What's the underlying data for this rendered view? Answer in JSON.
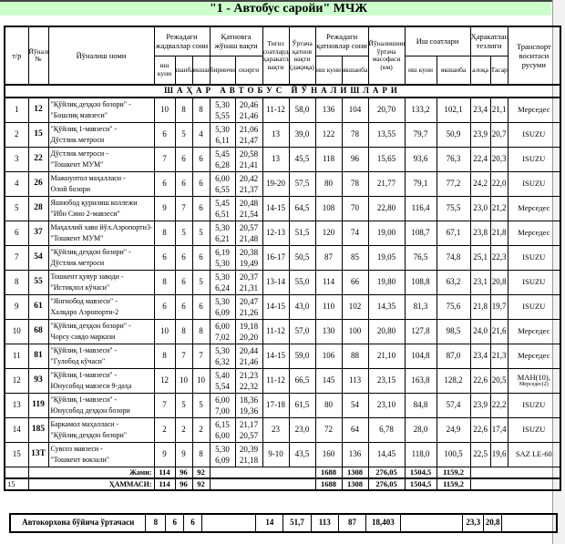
{
  "title": "\"1 - Автобус саройи\" МЧЖ",
  "headers": {
    "tr": "т/р",
    "route_no": "Йўналиш №",
    "route_name": "Йўналиш номи",
    "schedules": "Режадаги жадваллар сони",
    "workday": "иш куни",
    "saturday": "шанба",
    "sunday": "якшанба",
    "departure": "Қатновга жўнаш вақти",
    "first": "биринчи",
    "last": "охирги",
    "peak": "Тигиз соатларда ҳаракатланиш вақти",
    "avg_trip": "Ўртача қатнов вақти (дақиқа)",
    "trips": "Режадаги қатновлар сони",
    "trips_work": "иш куни",
    "trips_sun": "якшанба",
    "distance": "Йўналишнинг ўртача масофаси (км)",
    "hours": "Иш соатлари",
    "hours_work": "иш куни",
    "hours_sun": "якшанба",
    "speed": "Ҳаракатланиш тезлиги",
    "speed_comm": "алоқа",
    "speed_tech": "Тасарруф",
    "transport": "Транспорт воситаси русуми"
  },
  "section_title": "ШАҲАР АВТОБУС ЙЎНАЛИШЛАРИ",
  "rows": [
    {
      "n": "1",
      "route": "12",
      "name1": "\"Қўйлиқ деҳқон бозори\" -",
      "name2": "\"Бошлиқ мавзеси\"",
      "s1": "10",
      "s2": "8",
      "s3": "8",
      "f1": "5,30",
      "f2": "5,55",
      "l1": "20,46",
      "l2": "21,46",
      "peak": "11-12",
      "avg": "58,0",
      "tw": "136",
      "ts": "104",
      "dist": "20,70",
      "hw": "133,2",
      "hs": "102,1",
      "sp1": "23,4",
      "sp2": "21,1",
      "tr": "Мерседес"
    },
    {
      "n": "2",
      "route": "15",
      "name1": "\"Қўйлиқ 1-мавзеси\" -",
      "name2": "Дўстлик метроси",
      "s1": "6",
      "s2": "5",
      "s3": "4",
      "f1": "5,30",
      "f2": "6,11",
      "l1": "21,06",
      "l2": "21,47",
      "peak": "13",
      "avg": "39,0",
      "tw": "122",
      "ts": "78",
      "dist": "13,55",
      "hw": "79,7",
      "hs": "50,9",
      "sp1": "23,9",
      "sp2": "20,7",
      "tr": "ISUZU"
    },
    {
      "n": "3",
      "route": "22",
      "name1": "Дўстлик метроси  -",
      "name2": "\"Тошкент МУМ\"",
      "s1": "7",
      "s2": "6",
      "s3": "6",
      "f1": "5,45",
      "f2": "6,28",
      "l1": "20,58",
      "l2": "21,41",
      "peak": "13",
      "avg": "45,5",
      "tw": "118",
      "ts": "96",
      "dist": "15,65",
      "hw": "93,6",
      "hs": "76,3",
      "sp1": "22,4",
      "sp2": "20,3",
      "tr": "ISUZU"
    },
    {
      "n": "4",
      "route": "26",
      "name1": "Мажнунтол маҳалласи -",
      "name2": "Олой бозори",
      "s1": "6",
      "s2": "6",
      "s3": "6",
      "f1": "6,00",
      "f2": "6,55",
      "l1": "20,42",
      "l2": "21,37",
      "peak": "19-20",
      "avg": "57,5",
      "tw": "80",
      "ts": "78",
      "dist": "21,77",
      "hw": "79,1",
      "hs": "77,2",
      "sp1": "24,2",
      "sp2": "22,0",
      "tr": "ISUZU"
    },
    {
      "n": "5",
      "route": "28",
      "name1": "Яшнобод қурилиш коллежи",
      "name2": "\"Ибн Сино 2-мавзеси\"",
      "s1": "9",
      "s2": "7",
      "s3": "6",
      "f1": "5,45",
      "f2": "6,51",
      "l1": "20,48",
      "l2": "21,54",
      "peak": "14-15",
      "avg": "64,5",
      "tw": "108",
      "ts": "70",
      "dist": "22,80",
      "hw": "116,4",
      "hs": "75,5",
      "sp1": "23,0",
      "sp2": "21,2",
      "tr": "Мерседес"
    },
    {
      "n": "6",
      "route": "37",
      "name1": "Маҳаллий хаво йўл.Аэропорти3-",
      "name2": "\"Тошкент МУМ\"",
      "s1": "8",
      "s2": "5",
      "s3": "5",
      "f1": "5,30",
      "f2": "6,21",
      "l1": "20,57",
      "l2": "21,48",
      "peak": "12-13",
      "avg": "51,5",
      "tw": "120",
      "ts": "74",
      "dist": "19,00",
      "hw": "108,7",
      "hs": "67,1",
      "sp1": "23,8",
      "sp2": "21,8",
      "tr": "Мерседес"
    },
    {
      "n": "7",
      "route": "54",
      "name1": "\"Қўйлиқ деҳқон бозори\" -",
      "name2": "Дўстлик метроси",
      "s1": "6",
      "s2": "6",
      "s3": "6",
      "f1": "6,19",
      "f2": "5,30",
      "l1": "20,38",
      "l2": "19,49",
      "peak": "16-17",
      "avg": "50,5",
      "tw": "87",
      "ts": "85",
      "dist": "19,05",
      "hw": "76,5",
      "hs": "74,8",
      "sp1": "25,1",
      "sp2": "22,3",
      "tr": "ISUZU"
    },
    {
      "n": "8",
      "route": "55",
      "name1": "Тошкент қувур заводи -",
      "name2": "\"Истиқлол кўчаси\"",
      "s1": "8",
      "s2": "6",
      "s3": "5",
      "f1": "5,30",
      "f2": "6,24",
      "l1": "20,37",
      "l2": "21,31",
      "peak": "13-14",
      "avg": "55,0",
      "tw": "114",
      "ts": "66",
      "dist": "19,80",
      "hw": "108,8",
      "hs": "63,2",
      "sp1": "23,1",
      "sp2": "20,8",
      "tr": "ISUZU"
    },
    {
      "n": "9",
      "route": "61",
      "name1": "\"Янгиобод мавзеси\"  -",
      "name2": "Халқаро Аэропорти-2",
      "s1": "6",
      "s2": "6",
      "s3": "6",
      "f1": "5,30",
      "f2": "6,09",
      "l1": "20,47",
      "l2": "21,26",
      "peak": "14-15",
      "avg": "43,0",
      "tw": "110",
      "ts": "102",
      "dist": "14,35",
      "hw": "81,3",
      "hs": "75,6",
      "sp1": "21,8",
      "sp2": "19,7",
      "tr": "ISUZU"
    },
    {
      "n": "10",
      "route": "68",
      "name1": "\"Қўйлиқ деҳқон бозори\" -",
      "name2": "Чорсу савдо маркази",
      "s1": "10",
      "s2": "8",
      "s3": "8",
      "f1": "6,00",
      "f2": "7,02",
      "l1": "19,18",
      "l2": "20,20",
      "peak": "11-12",
      "avg": "57,0",
      "tw": "130",
      "ts": "100",
      "dist": "20,80",
      "hw": "127,8",
      "hs": "98,5",
      "sp1": "24,0",
      "sp2": "21,6",
      "tr": "Мерседес"
    },
    {
      "n": "11",
      "route": "81",
      "name1": "\"Қўйлиқ 1-мавзеси\"  -",
      "name2": "\"Гулобод кўчаси\"",
      "s1": "8",
      "s2": "7",
      "s3": "7",
      "f1": "5,30",
      "f2": "6,32",
      "l1": "20,44",
      "l2": "21,46",
      "peak": "14-15",
      "avg": "59,0",
      "tw": "106",
      "ts": "88",
      "dist": "21,10",
      "hw": "104,8",
      "hs": "87,0",
      "sp1": "23,4",
      "sp2": "21,3",
      "tr": "Мерседес"
    },
    {
      "n": "12",
      "route": "93",
      "name1": "\"Қўйлиқ 1-мавзеси\"  -",
      "name2": "Юнусобод мавзеси 9-даҳа",
      "s1": "12",
      "s2": "10",
      "s3": "10",
      "f1": "5,40",
      "f2": "5,54",
      "l1": "21,23",
      "l2": "22,32",
      "peak": "11-12",
      "avg": "66,5",
      "tw": "145",
      "ts": "113",
      "dist": "23,15",
      "hw": "163,8",
      "hs": "128,2",
      "sp1": "22,6",
      "sp2": "20,5",
      "tr": "МАН(10),",
      "tr2": "Мерседес(2)"
    },
    {
      "n": "13",
      "route": "119",
      "name1": "\"Қўйлиқ 1-мавзеси\"  -",
      "name2": "Юнусобод деҳқон бозори",
      "s1": "7",
      "s2": "5",
      "s3": "5",
      "f1": "6,00",
      "f2": "7,00",
      "l1": "18,36",
      "l2": "19,36",
      "peak": "17-18",
      "avg": "61,5",
      "tw": "80",
      "ts": "54",
      "dist": "23,10",
      "hw": "84,8",
      "hs": "57,4",
      "sp1": "23,9",
      "sp2": "22,2",
      "tr": "ISUZU"
    },
    {
      "n": "14",
      "route": "185",
      "name1": "Баркамол маҳалласи -",
      "name2": "\"Қўйлиқ деҳқон бозори\"",
      "s1": "2",
      "s2": "2",
      "s3": "2",
      "f1": "6,15",
      "f2": "6,00",
      "l1": "21,17",
      "l2": "20,57",
      "peak": "23",
      "avg": "23,0",
      "tw": "72",
      "ts": "64",
      "dist": "6,78",
      "hw": "28,0",
      "hs": "24,9",
      "sp1": "22,6",
      "sp2": "17,4",
      "tr": "ISUZU"
    },
    {
      "n": "15",
      "route": "13Т",
      "name1": "Сувсоз мавзеси -",
      "name2": "\"Тошкент вокзали\"",
      "s1": "9",
      "s2": "9",
      "s3": "8",
      "f1": "5,30",
      "f2": "6,09",
      "l1": "20,39",
      "l2": "21,18",
      "peak": "9-10",
      "avg": "43,5",
      "tw": "160",
      "ts": "136",
      "dist": "14,45",
      "hw": "118,0",
      "hs": "100,5",
      "sp1": "22,5",
      "sp2": "19,6",
      "tr": "SAZ LE-60"
    }
  ],
  "total": {
    "label": "Жами:",
    "s1": "114",
    "s2": "96",
    "s3": "92",
    "tw": "1688",
    "ts": "1308",
    "dist": "276,05",
    "hw": "1504,5",
    "hs": "1159,2"
  },
  "grand_total": {
    "count": "15",
    "label": "ҲАММАСИ:",
    "s1": "114",
    "s2": "96",
    "s3": "92",
    "tw": "1688",
    "ts": "1308",
    "dist": "276,05",
    "hw": "1504,5",
    "hs": "1159,2"
  },
  "average": {
    "label": "Автокорхона бўйича ўртачаси",
    "s1": "8",
    "s2": "6",
    "s3": "6",
    "peak": "14",
    "avg": "51,7",
    "tw": "113",
    "ts": "87",
    "dist": "18,403",
    "sp1": "23,3",
    "sp2": "20,8"
  }
}
